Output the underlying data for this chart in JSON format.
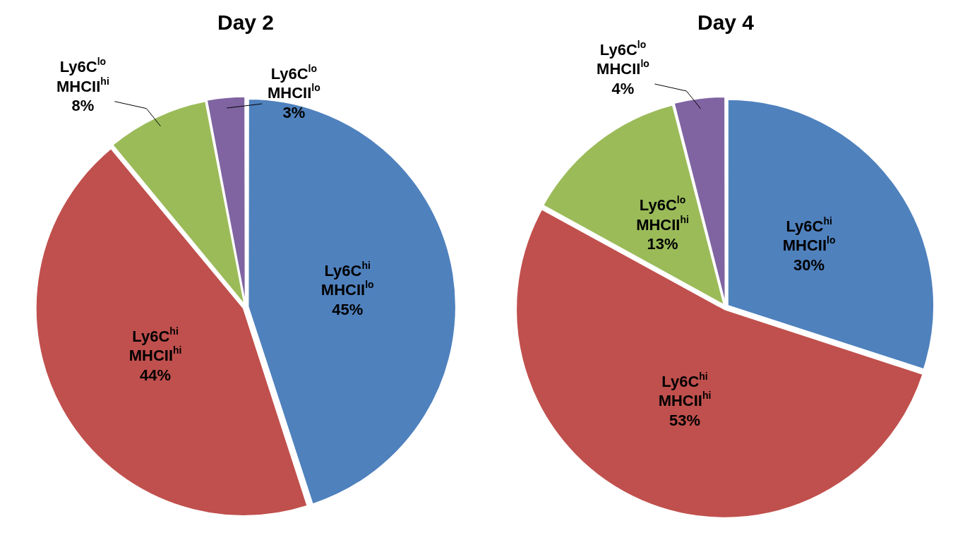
{
  "chart_data": [
    {
      "type": "pie",
      "title": "Day 2",
      "categories": [
        "Ly6C$^{hi}$ MHCII$^{lo}$",
        "Ly6C$^{hi}$ MHCII$^{hi}$",
        "Ly6C$^{lo}$ MHCII$^{hi}$",
        "Ly6C$^{lo}$ MHCII$^{lo}$"
      ],
      "values": [
        45,
        44,
        8,
        3
      ],
      "value_labels": [
        "45%",
        "44%",
        "8%",
        "3%"
      ],
      "colors": [
        "#4f81bd",
        "#c0504d",
        "#9bbb59",
        "#8064a2"
      ]
    },
    {
      "type": "pie",
      "title": "Day 4",
      "categories": [
        "Ly6C$^{hi}$ MHCII$^{lo}$",
        "Ly6C$^{hi}$ MHCII$^{hi}$",
        "Ly6C$^{lo}$ MHCII$^{hi}$",
        "Ly6C$^{lo}$ MHCII$^{lo}$"
      ],
      "values": [
        30,
        53,
        13,
        4
      ],
      "value_labels": [
        "30%",
        "53%",
        "13%",
        "4%"
      ],
      "colors": [
        "#4f81bd",
        "#c0504d",
        "#9bbb59",
        "#8064a2"
      ]
    }
  ]
}
